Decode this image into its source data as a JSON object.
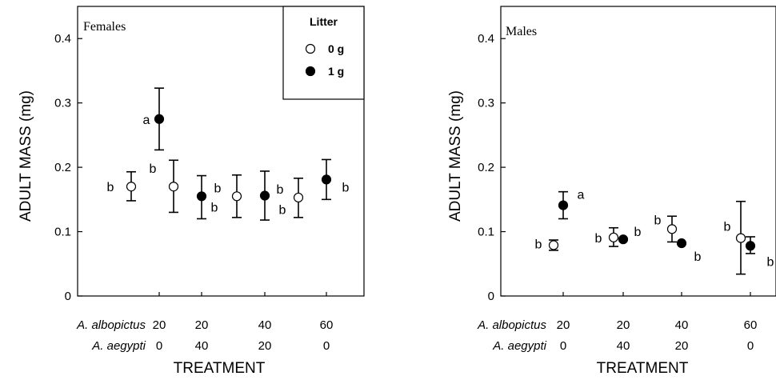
{
  "chart_data": [
    {
      "type": "scatter",
      "title": "Females",
      "ylabel": "ADULT MASS (mg)",
      "xlabel": "TREATMENT",
      "ylim": [
        0,
        0.45
      ],
      "yticks": [
        0,
        0.1,
        0.2,
        0.3,
        0.4
      ],
      "ytick_labels": [
        "0",
        "0.1",
        "0.2",
        "0.3",
        "0.4"
      ],
      "grid": false,
      "treatment_rows": [
        {
          "label": "A. albopictus",
          "values": [
            "20",
            "20",
            "40",
            "60"
          ]
        },
        {
          "label": "A. aegypti",
          "values": [
            "0",
            "40",
            "20",
            "0"
          ]
        }
      ],
      "legend": {
        "title": "Litter",
        "placement": "top-right",
        "entries": [
          {
            "label": "0 g",
            "marker": "open-circle"
          },
          {
            "label": "1 g",
            "marker": "filled-circle"
          }
        ]
      },
      "series": [
        {
          "name": "0 g",
          "marker": "open-circle",
          "values": [
            0.17,
            0.17,
            0.155,
            0.153
          ],
          "err_low": [
            0.148,
            0.13,
            0.122,
            0.122
          ],
          "err_high": [
            0.193,
            0.211,
            0.188,
            0.183
          ],
          "letters": [
            "b",
            "b",
            "b",
            "b"
          ]
        },
        {
          "name": "1 g",
          "marker": "filled-circle",
          "values": [
            0.275,
            0.155,
            0.156,
            0.181
          ],
          "err_low": [
            0.227,
            0.12,
            0.118,
            0.15
          ],
          "err_high": [
            0.323,
            0.187,
            0.194,
            0.212
          ],
          "letters": [
            "a",
            "b",
            "b",
            "b"
          ]
        }
      ]
    },
    {
      "type": "scatter",
      "title": "Males",
      "ylabel": "ADULT MASS (mg)",
      "xlabel": "TREATMENT",
      "ylim": [
        0,
        0.45
      ],
      "yticks": [
        0,
        0.1,
        0.2,
        0.3,
        0.4
      ],
      "ytick_labels": [
        "0",
        "0.1",
        "0.2",
        "0.3",
        "0.4"
      ],
      "grid": false,
      "treatment_rows": [
        {
          "label": "A. albopictus",
          "values": [
            "20",
            "20",
            "40",
            "60"
          ]
        },
        {
          "label": "A. aegypti",
          "values": [
            "0",
            "40",
            "20",
            "0"
          ]
        }
      ],
      "series": [
        {
          "name": "0 g",
          "marker": "open-circle",
          "values": [
            0.079,
            0.091,
            0.104,
            0.09
          ],
          "err_low": [
            0.071,
            0.077,
            0.084,
            0.034
          ],
          "err_high": [
            0.087,
            0.106,
            0.124,
            0.147
          ],
          "letters": [
            "b",
            "b",
            "b",
            "b"
          ]
        },
        {
          "name": "1 g",
          "marker": "filled-circle",
          "values": [
            0.141,
            0.088,
            0.082,
            0.078
          ],
          "err_low": [
            0.12,
            0.088,
            0.082,
            0.066
          ],
          "err_high": [
            0.162,
            0.088,
            0.082,
            0.092
          ],
          "letters": [
            "a",
            "b",
            "b",
            "b"
          ]
        }
      ]
    }
  ]
}
